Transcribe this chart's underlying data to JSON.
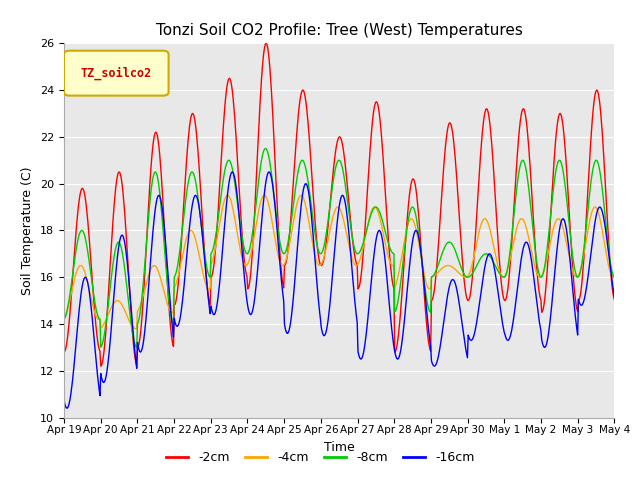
{
  "title": "Tonzi Soil CO2 Profile: Tree (West) Temperatures",
  "xlabel": "Time",
  "ylabel": "Soil Temperature (C)",
  "ylim": [
    10,
    26
  ],
  "yticks": [
    10,
    12,
    14,
    16,
    18,
    20,
    22,
    24,
    26
  ],
  "legend_label": "TZ_soilco2",
  "series_labels": [
    "-2cm",
    "-4cm",
    "-8cm",
    "-16cm"
  ],
  "series_colors": [
    "#ff0000",
    "#ffa500",
    "#00cc00",
    "#0000ff"
  ],
  "background_color": "#e8e8e8",
  "xtick_labels": [
    "Apr 19",
    "Apr 20",
    "Apr 21",
    "Apr 22",
    "Apr 23",
    "Apr 24",
    "Apr 25",
    "Apr 26",
    "Apr 27",
    "Apr 28",
    "Apr 29",
    "Apr 30",
    "May 1",
    "May 2",
    "May 3",
    "May 4"
  ],
  "red_peaks": [
    19.8,
    20.5,
    22.2,
    23.0,
    24.5,
    26.0,
    24.0,
    22.0,
    23.5,
    20.2,
    22.6,
    23.2,
    23.2,
    23.0,
    24.0
  ],
  "red_troughs": [
    12.8,
    12.2,
    13.0,
    14.8,
    16.0,
    15.5,
    16.5,
    16.5,
    15.5,
    12.8,
    15.0,
    15.0,
    15.0,
    14.5,
    15.0
  ],
  "orange_peaks": [
    16.5,
    15.0,
    16.5,
    18.0,
    19.5,
    19.5,
    19.5,
    19.0,
    19.0,
    18.5,
    16.5,
    18.5,
    18.5,
    18.5,
    19.0
  ],
  "orange_troughs": [
    14.2,
    13.8,
    14.5,
    15.5,
    16.5,
    16.5,
    16.5,
    16.5,
    16.5,
    15.5,
    16.0,
    16.0,
    16.0,
    16.0,
    16.0
  ],
  "green_peaks": [
    18.0,
    17.5,
    20.5,
    20.5,
    21.0,
    21.5,
    21.0,
    21.0,
    19.0,
    19.0,
    17.5,
    17.0,
    21.0,
    21.0,
    21.0
  ],
  "green_troughs": [
    14.2,
    13.0,
    14.0,
    16.0,
    17.0,
    17.0,
    17.0,
    17.0,
    17.0,
    14.5,
    16.0,
    16.0,
    16.0,
    16.0,
    16.0
  ],
  "blue_peaks": [
    16.0,
    17.8,
    19.5,
    19.5,
    20.5,
    20.5,
    20.0,
    19.5,
    18.0,
    18.0,
    15.9,
    17.0,
    17.5,
    18.5,
    19.0
  ],
  "blue_troughs": [
    10.4,
    11.5,
    12.8,
    13.9,
    14.4,
    14.4,
    13.6,
    13.5,
    12.5,
    12.5,
    12.2,
    13.3,
    13.3,
    13.0,
    14.8
  ]
}
